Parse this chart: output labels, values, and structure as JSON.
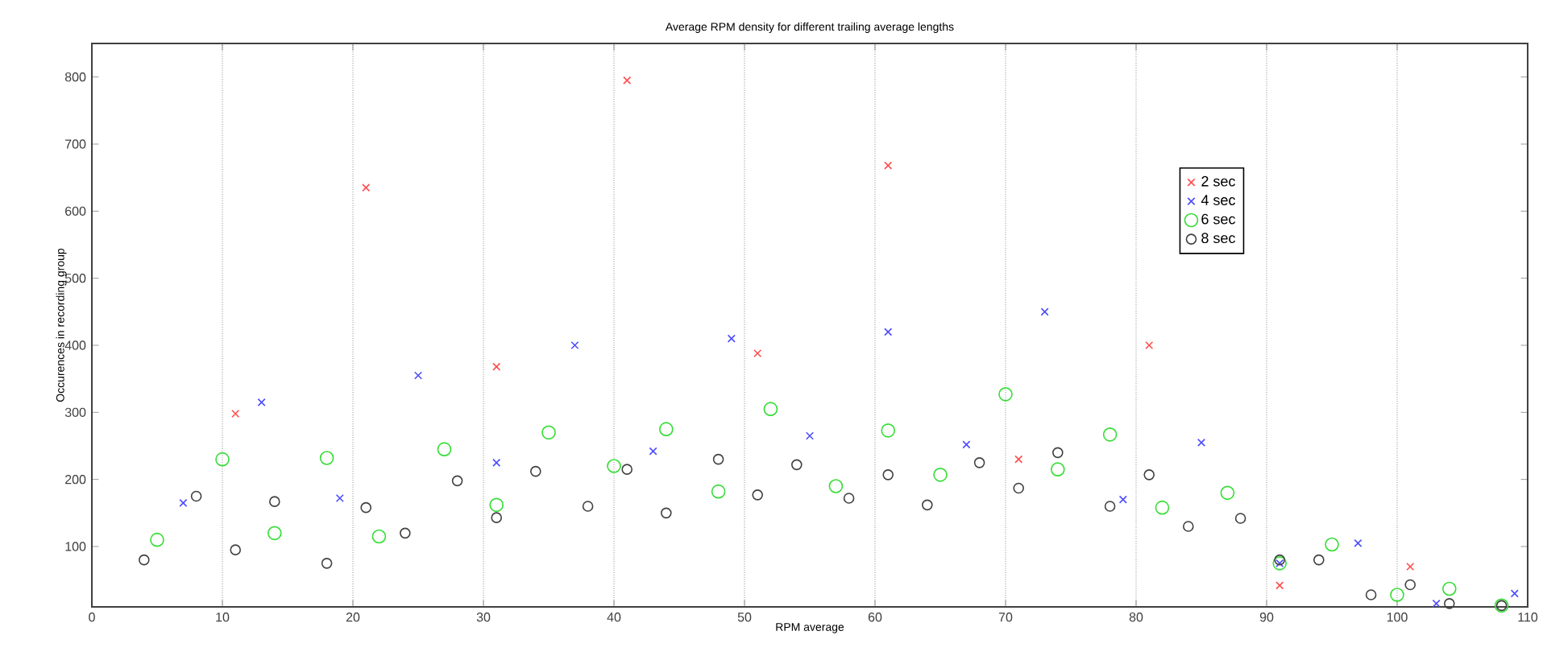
{
  "chart_data": {
    "type": "scatter",
    "title": "Average RPM density for different trailing average lengths",
    "xlabel": "RPM average",
    "ylabel": "Occurences in recording group",
    "xlim": [
      0,
      110
    ],
    "xticks": [
      0,
      10,
      20,
      30,
      40,
      50,
      60,
      70,
      80,
      90,
      100,
      110
    ],
    "ylim": [
      10,
      850
    ],
    "yticks": [
      100,
      200,
      300,
      400,
      500,
      600,
      700,
      800
    ],
    "grid": "x",
    "legend": "right",
    "series": [
      {
        "name": "2 sec",
        "color": "#ff4d4d",
        "marker": "cross",
        "x": [
          11,
          21,
          31,
          41,
          51,
          61,
          71,
          81,
          91,
          101
        ],
        "values": [
          298,
          635,
          368,
          795,
          388,
          668,
          230,
          400,
          42,
          70
        ]
      },
      {
        "name": "4 sec",
        "color": "#4d4dff",
        "marker": "cross",
        "x": [
          7,
          13,
          19,
          25,
          31,
          37,
          43,
          49,
          55,
          61,
          67,
          73,
          79,
          85,
          91,
          97,
          103,
          109
        ],
        "values": [
          165,
          315,
          172,
          355,
          225,
          400,
          242,
          410,
          265,
          420,
          252,
          450,
          170,
          255,
          75,
          105,
          15,
          30
        ]
      },
      {
        "name": "6 sec",
        "color": "#33dd33",
        "marker": "circle",
        "x": [
          5,
          10,
          14,
          18,
          22,
          27,
          31,
          35,
          40,
          44,
          48,
          52,
          57,
          61,
          65,
          70,
          74,
          78,
          82,
          87,
          91,
          95,
          100,
          104,
          108
        ],
        "values": [
          110,
          230,
          120,
          232,
          115,
          245,
          162,
          270,
          220,
          275,
          182,
          305,
          190,
          273,
          207,
          327,
          215,
          267,
          158,
          180,
          75,
          103,
          28,
          37,
          12
        ]
      },
      {
        "name": "8 sec",
        "color": "#404040",
        "marker": "circle",
        "x": [
          4,
          8,
          11,
          14,
          18,
          21,
          24,
          28,
          31,
          34,
          38,
          41,
          44,
          48,
          51,
          54,
          58,
          61,
          64,
          68,
          71,
          74,
          78,
          81,
          84,
          88,
          91,
          94,
          98,
          101,
          104,
          108
        ],
        "values": [
          80,
          175,
          95,
          167,
          75,
          158,
          120,
          198,
          143,
          212,
          160,
          215,
          150,
          230,
          177,
          222,
          172,
          207,
          162,
          225,
          187,
          240,
          160,
          207,
          130,
          142,
          80,
          80,
          28,
          43,
          15,
          12
        ]
      }
    ]
  }
}
